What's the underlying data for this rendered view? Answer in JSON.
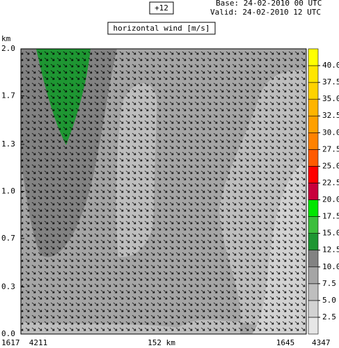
{
  "chart_data": {
    "type": "contour",
    "forecast_step": "+12",
    "base": "Base: 24-02-2010  00 UTC",
    "valid": "Valid: 24-02-2010  12 UTC",
    "title": "horizontal wind [m/s]",
    "y_label": "km",
    "ylim": [
      0,
      2
    ],
    "yticks": [
      {
        "value": 0,
        "label": "0.0"
      },
      {
        "value": 0.33,
        "label": "0.3"
      },
      {
        "value": 0.67,
        "label": "0.7"
      },
      {
        "value": 1,
        "label": "1.0"
      },
      {
        "value": 1.33,
        "label": "1.3"
      },
      {
        "value": 1.67,
        "label": "1.7"
      },
      {
        "value": 2,
        "label": "2.0"
      }
    ],
    "x_labels": [
      "1617",
      "4211",
      "152 km",
      "1645",
      "4347"
    ],
    "colorbar": {
      "colors": [
        "#e6e6e6",
        "#d2d2d2",
        "#bebebe",
        "#a5a5a5",
        "#828282",
        "#1e9632",
        "#3cbe3c",
        "#00e600",
        "#c8003c",
        "#ff0000",
        "#ff5a00",
        "#ff8200",
        "#ffa000",
        "#ffb400",
        "#ffd200",
        "#ffe600",
        "#ffff00"
      ],
      "ticks": [
        2.5,
        {
          "value": 5,
          "label": "5.0"
        },
        7.5,
        {
          "value": 10,
          "label": "10.0"
        },
        12.5,
        {
          "value": 15,
          "label": "15.0"
        },
        17.5,
        {
          "value": 20,
          "label": "20.0"
        },
        22.5,
        {
          "value": 25,
          "label": "25.0"
        },
        27.5,
        {
          "value": 30,
          "label": "30.0"
        },
        32.5,
        {
          "value": 35,
          "label": "35.0"
        },
        37.5,
        {
          "value": 40,
          "label": "40.0"
        }
      ]
    }
  }
}
